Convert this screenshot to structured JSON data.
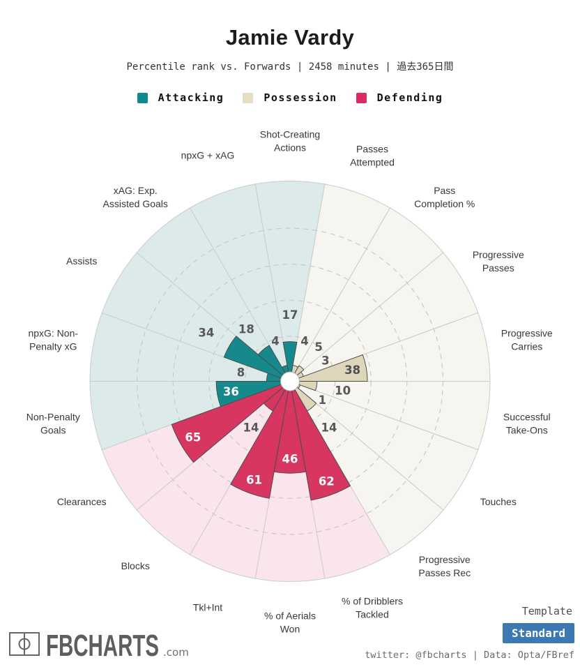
{
  "header": {
    "title": "Jamie Vardy",
    "subtitle": "Percentile rank vs. Forwards | 2458 minutes | 過去365日間"
  },
  "legend": [
    {
      "id": "attacking",
      "label": "Attacking",
      "color": "#0e8a8d"
    },
    {
      "id": "possession",
      "label": "Possession",
      "color": "#e5ddc4"
    },
    {
      "id": "defending",
      "label": "Defending",
      "color": "#dc2a60"
    }
  ],
  "group_styles": {
    "attacking": {
      "fill": "#15898b",
      "bg": "#dcebea",
      "value_label_inside": "#ffffff"
    },
    "possession": {
      "fill": "#ded6bb",
      "bg": "#f7f5ef",
      "value_label_inside": "#4f4f4f"
    },
    "defending": {
      "fill": "#d63660",
      "bg": "#fbe5ec",
      "value_label_inside": "#ffffff"
    }
  },
  "chart_data": {
    "type": "bar",
    "variant": "polar-pizza",
    "title": "Jamie Vardy",
    "subtitle": "Percentile rank vs. Forwards | 2458 minutes | 過去365日間",
    "unit": "percentile (0-100)",
    "legend_position": "top",
    "scale": {
      "min": 0,
      "max": 100,
      "dashed_gridlines": [
        20,
        40,
        60,
        80
      ]
    },
    "categories": [
      "Shot-Creating Actions",
      "Passes Attempted",
      "Pass Completion %",
      "Progressive Passes",
      "Progressive Carries",
      "Successful Take-Ons",
      "Touches",
      "Progressive Passes Rec",
      "% of Dribblers Tackled",
      "% of Aerials Won",
      "Tkl+Int",
      "Blocks",
      "Clearances",
      "Non-Penalty Goals",
      "npxG: Non-Penalty xG",
      "Assists",
      "xAG: Exp. Assisted Goals",
      "npxG + xAG"
    ],
    "values": [
      17,
      4,
      5,
      3,
      38,
      10,
      1,
      14,
      62,
      46,
      61,
      14,
      65,
      36,
      8,
      34,
      18,
      4
    ],
    "groups": [
      "attacking",
      "possession",
      "possession",
      "possession",
      "possession",
      "possession",
      "possession",
      "possession",
      "defending",
      "defending",
      "defending",
      "defending",
      "defending",
      "attacking",
      "attacking",
      "attacking",
      "attacking",
      "attacking"
    ],
    "slices": [
      {
        "label": "Shot-Creating Actions",
        "lines": [
          "Shot-Creating",
          "Actions"
        ],
        "value": 17,
        "group": "attacking"
      },
      {
        "label": "Passes Attempted",
        "lines": [
          "Passes",
          "Attempted"
        ],
        "value": 4,
        "group": "possession"
      },
      {
        "label": "Pass Completion %",
        "lines": [
          "Pass",
          "Completion %"
        ],
        "value": 5,
        "group": "possession"
      },
      {
        "label": "Progressive Passes",
        "lines": [
          "Progressive",
          "Passes"
        ],
        "value": 3,
        "group": "possession"
      },
      {
        "label": "Progressive Carries",
        "lines": [
          "Progressive",
          "Carries"
        ],
        "value": 38,
        "group": "possession"
      },
      {
        "label": "Successful Take-Ons",
        "lines": [
          "Successful",
          "Take-Ons"
        ],
        "value": 10,
        "group": "possession"
      },
      {
        "label": "Touches",
        "lines": [
          "Touches"
        ],
        "value": 1,
        "group": "possession"
      },
      {
        "label": "Progressive Passes Rec",
        "lines": [
          "Progressive",
          "Passes Rec"
        ],
        "value": 14,
        "group": "possession"
      },
      {
        "label": "% of Dribblers Tackled",
        "lines": [
          "% of Dribblers",
          "Tackled"
        ],
        "value": 62,
        "group": "defending"
      },
      {
        "label": "% of Aerials Won",
        "lines": [
          "% of Aerials",
          "Won"
        ],
        "value": 46,
        "group": "defending"
      },
      {
        "label": "Tkl+Int",
        "lines": [
          "Tkl+Int"
        ],
        "value": 61,
        "group": "defending"
      },
      {
        "label": "Blocks",
        "lines": [
          "Blocks"
        ],
        "value": 14,
        "group": "defending"
      },
      {
        "label": "Clearances",
        "lines": [
          "Clearances"
        ],
        "value": 65,
        "group": "defending"
      },
      {
        "label": "Non-Penalty Goals",
        "lines": [
          "Non-Penalty",
          "Goals"
        ],
        "value": 36,
        "group": "attacking"
      },
      {
        "label": "npxG: Non-Penalty xG",
        "lines": [
          "npxG: Non-",
          "Penalty xG"
        ],
        "value": 8,
        "group": "attacking"
      },
      {
        "label": "Assists",
        "lines": [
          "Assists"
        ],
        "value": 34,
        "group": "attacking"
      },
      {
        "label": "xAG: Exp. Assisted Goals",
        "lines": [
          "xAG: Exp.",
          "Assisted Goals"
        ],
        "value": 18,
        "group": "attacking"
      },
      {
        "label": "npxG + xAG",
        "lines": [
          "npxG + xAG"
        ],
        "value": 4,
        "group": "attacking"
      }
    ]
  },
  "logo": {
    "text": "FBCHARTS",
    "suffix": ".com"
  },
  "template_panel": {
    "label": "Template",
    "selected": "Standard"
  },
  "footer": {
    "credits": "twitter: @fbcharts | Data: Opta/FBref"
  }
}
